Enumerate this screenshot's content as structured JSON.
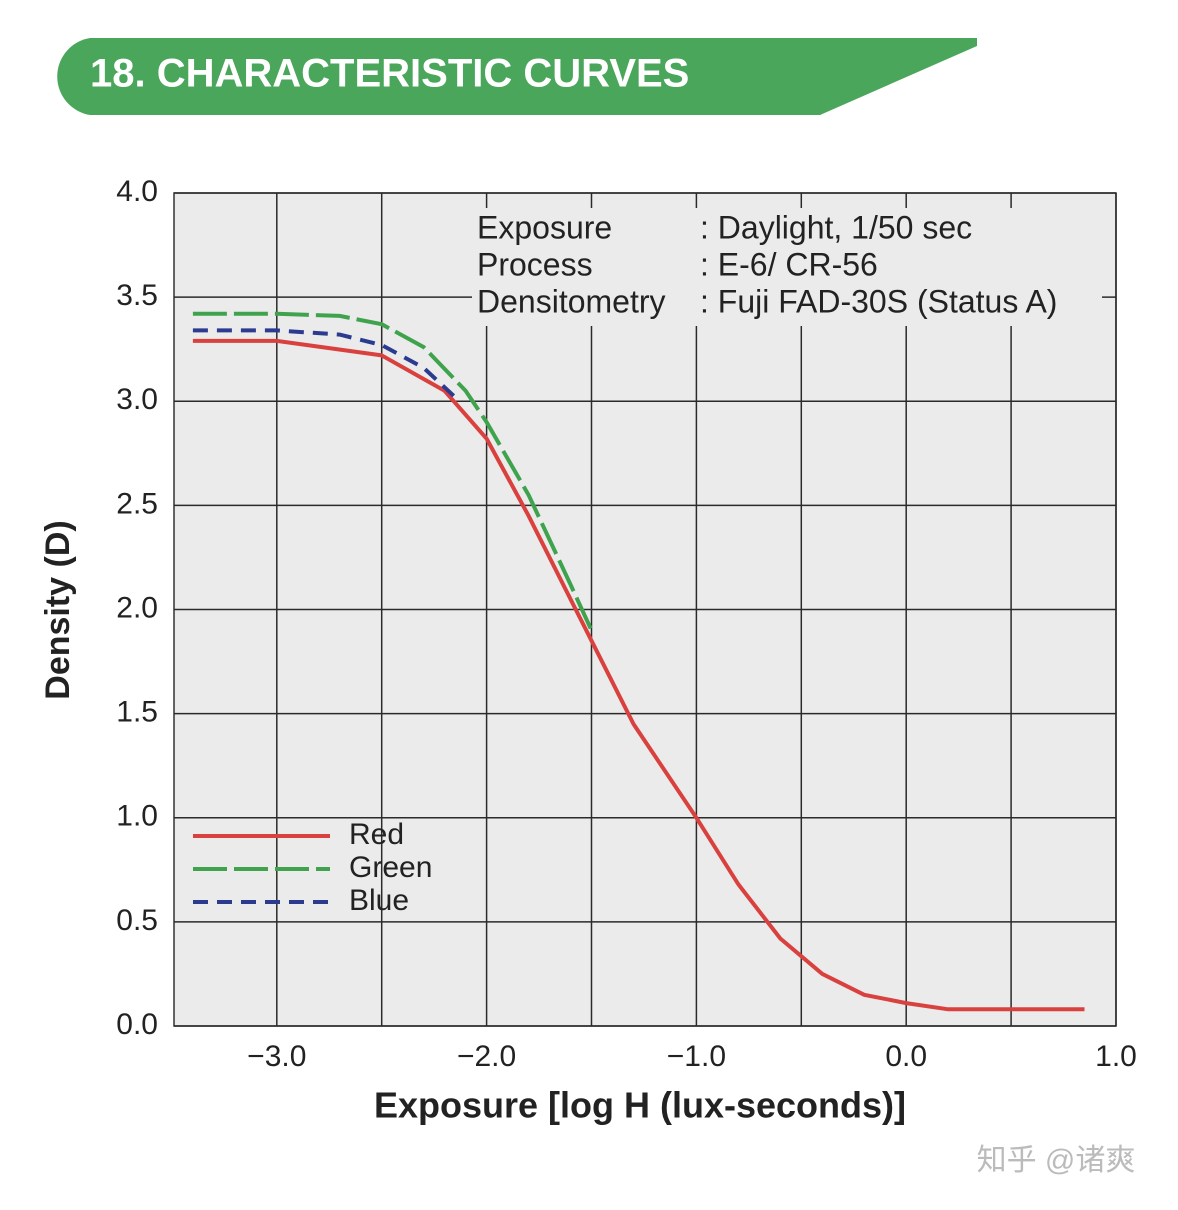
{
  "header": {
    "title": "18.  CHARACTERISTIC  CURVES"
  },
  "chart_data": {
    "type": "line",
    "xlabel": "Exposure [log H (lux-seconds)]",
    "ylabel": "Density (D)",
    "xlim": [
      -3.49,
      1.0
    ],
    "ylim": [
      0,
      4
    ],
    "xticks": [
      {
        "value": -3,
        "label": "−3.0"
      },
      {
        "value": -2,
        "label": "−2.0"
      },
      {
        "value": -1,
        "label": "−1.0"
      },
      {
        "value": 0,
        "label": "0.0"
      },
      {
        "value": 1,
        "label": "1.0"
      }
    ],
    "xminor": [
      -2.5,
      -1.5,
      -0.5,
      0.5
    ],
    "yticks": [
      {
        "value": 0,
        "label": "0.0"
      },
      {
        "value": 0.5,
        "label": "0.5"
      },
      {
        "value": 1,
        "label": "1.0"
      },
      {
        "value": 1.5,
        "label": "1.5"
      },
      {
        "value": 2,
        "label": "2.0"
      },
      {
        "value": 2.5,
        "label": "2.5"
      },
      {
        "value": 3,
        "label": "3.0"
      },
      {
        "value": 3.5,
        "label": "3.5"
      },
      {
        "value": 4,
        "label": "4.0"
      }
    ],
    "grid": true,
    "legend": "lower-left",
    "annotations": [
      {
        "label": "Exposure",
        "value": ": Daylight, 1/50 sec"
      },
      {
        "label": "Process",
        "value": ": E-6/ CR-56"
      },
      {
        "label": "Densitometry",
        "value": ": Fuji FAD-30S (Status A)"
      }
    ],
    "series": [
      {
        "name": "Red",
        "color": "#d9413f",
        "dash": "solid",
        "x": [
          -3.4,
          -3.0,
          -2.5,
          -2.2,
          -2.0,
          -1.8,
          -1.6,
          -1.5,
          -1.3,
          -1.0,
          -0.8,
          -0.6,
          -0.4,
          -0.2,
          0.0,
          0.2,
          0.5,
          0.85
        ],
        "values": [
          3.29,
          3.29,
          3.22,
          3.05,
          2.82,
          2.45,
          2.05,
          1.85,
          1.45,
          1.0,
          0.68,
          0.42,
          0.25,
          0.15,
          0.11,
          0.08,
          0.08,
          0.08
        ]
      },
      {
        "name": "Green",
        "color": "#3fa34d",
        "dash": "long-dash",
        "x": [
          -3.4,
          -3.0,
          -2.7,
          -2.5,
          -2.3,
          -2.1,
          -2.0,
          -1.8,
          -1.6,
          -1.5
        ],
        "values": [
          3.42,
          3.42,
          3.41,
          3.37,
          3.26,
          3.05,
          2.9,
          2.55,
          2.12,
          1.9
        ]
      },
      {
        "name": "Blue",
        "color": "#2b3b8f",
        "dash": "dash",
        "x": [
          -3.4,
          -3.0,
          -2.7,
          -2.5,
          -2.3,
          -2.15
        ],
        "values": [
          3.34,
          3.34,
          3.32,
          3.27,
          3.16,
          3.02
        ]
      }
    ]
  },
  "watermark": "知乎 @诸爽"
}
